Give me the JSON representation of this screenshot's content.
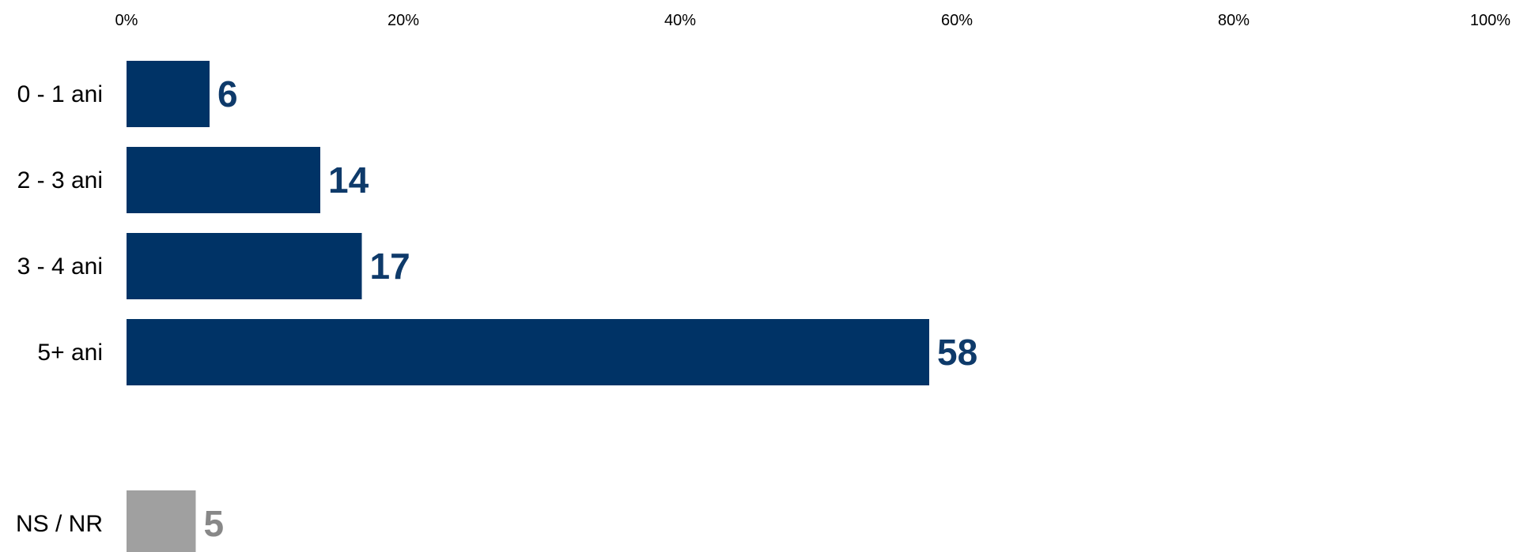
{
  "chart_data": {
    "type": "bar",
    "orientation": "horizontal",
    "title": "",
    "xlabel": "",
    "ylabel": "",
    "xlim": [
      0,
      100
    ],
    "x_ticks": [
      "0%",
      "20%",
      "40%",
      "60%",
      "80%",
      "100%"
    ],
    "x_tick_values": [
      0,
      20,
      40,
      60,
      80,
      100
    ],
    "x_axis_position": "top",
    "grid": false,
    "legend": "none",
    "categories": [
      "0 - 1 ani",
      "2 - 3 ani",
      "3 - 4 ani",
      "5+ ani",
      "NS / NR"
    ],
    "values": [
      6,
      14,
      17,
      58,
      5
    ],
    "value_labels": [
      "6",
      "14",
      "17",
      "58",
      "5"
    ],
    "bar_colors": [
      "#003366",
      "#003366",
      "#003366",
      "#003366",
      "#a0a0a0"
    ],
    "label_colors": [
      "#0e3a6a",
      "#0e3a6a",
      "#0e3a6a",
      "#0e3a6a",
      "#888888"
    ]
  }
}
